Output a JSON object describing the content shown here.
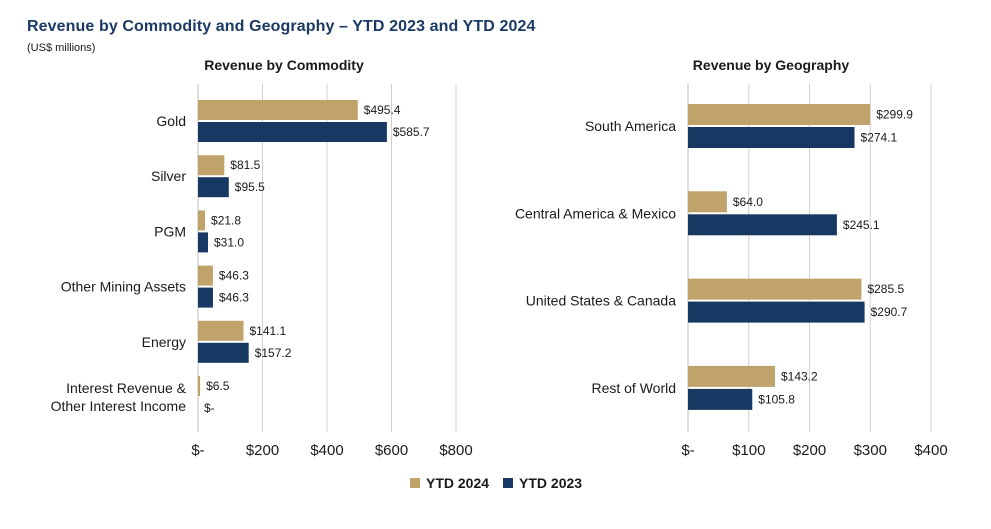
{
  "page": {
    "title": "Revenue by Commodity and Geography – YTD 2023 and YTD 2024",
    "subtitle": "(US$ millions)"
  },
  "colors": {
    "ytd_2024": "#bfa36a",
    "ytd_2023": "#173862",
    "grid": "#d0d0d0",
    "title": "#1b3a64"
  },
  "legend": {
    "items": [
      {
        "label": "YTD 2024",
        "color": "#bfa36a"
      },
      {
        "label": "YTD 2023",
        "color": "#173862"
      }
    ],
    "placement": "bottom-center"
  },
  "chart_data": [
    {
      "type": "bar",
      "orientation": "horizontal",
      "title": "Revenue by Commodity",
      "categories": [
        "Gold",
        "Silver",
        "PGM",
        "Other Mining Assets",
        "Energy",
        "Interest Revenue & Other Interest Income"
      ],
      "category_lines": [
        [
          "Gold"
        ],
        [
          "Silver"
        ],
        [
          "PGM"
        ],
        [
          "Other Mining Assets"
        ],
        [
          "Energy"
        ],
        [
          "Interest Revenue &",
          "Other Interest Income"
        ]
      ],
      "series": [
        {
          "name": "YTD 2024",
          "values": [
            495.4,
            81.5,
            21.8,
            46.3,
            141.1,
            6.5
          ],
          "labels": [
            "$495.4",
            "$81.5",
            "$21.8",
            "$46.3",
            "$141.1",
            "$6.5"
          ]
        },
        {
          "name": "YTD 2023",
          "values": [
            585.7,
            95.5,
            31.0,
            46.3,
            157.2,
            0
          ],
          "labels": [
            "$585.7",
            "$95.5",
            "$31.0",
            "$46.3",
            "$157.2",
            "$-"
          ]
        }
      ],
      "xlim": [
        0,
        800
      ],
      "ticks": [
        0,
        200,
        400,
        600,
        800
      ],
      "tick_labels": [
        "$-",
        "$200",
        "$400",
        "$600",
        "$800"
      ],
      "grid": "vertical"
    },
    {
      "type": "bar",
      "orientation": "horizontal",
      "title": "Revenue by Geography",
      "categories": [
        "South America",
        "Central America & Mexico",
        "United States & Canada",
        "Rest of World"
      ],
      "category_lines": [
        [
          "South America"
        ],
        [
          "Central America & Mexico"
        ],
        [
          "United States & Canada"
        ],
        [
          "Rest of World"
        ]
      ],
      "series": [
        {
          "name": "YTD 2024",
          "values": [
            299.9,
            64.0,
            285.5,
            143.2
          ],
          "labels": [
            "$299.9",
            "$64.0",
            "$285.5",
            "$143.2"
          ]
        },
        {
          "name": "YTD 2023",
          "values": [
            274.1,
            245.1,
            290.7,
            105.8
          ],
          "labels": [
            "$274.1",
            "$245.1",
            "$290.7",
            "$105.8"
          ]
        }
      ],
      "xlim": [
        0,
        400
      ],
      "ticks": [
        0,
        100,
        200,
        300,
        400
      ],
      "tick_labels": [
        "$-",
        "$100",
        "$200",
        "$300",
        "$400"
      ],
      "grid": "vertical"
    }
  ]
}
